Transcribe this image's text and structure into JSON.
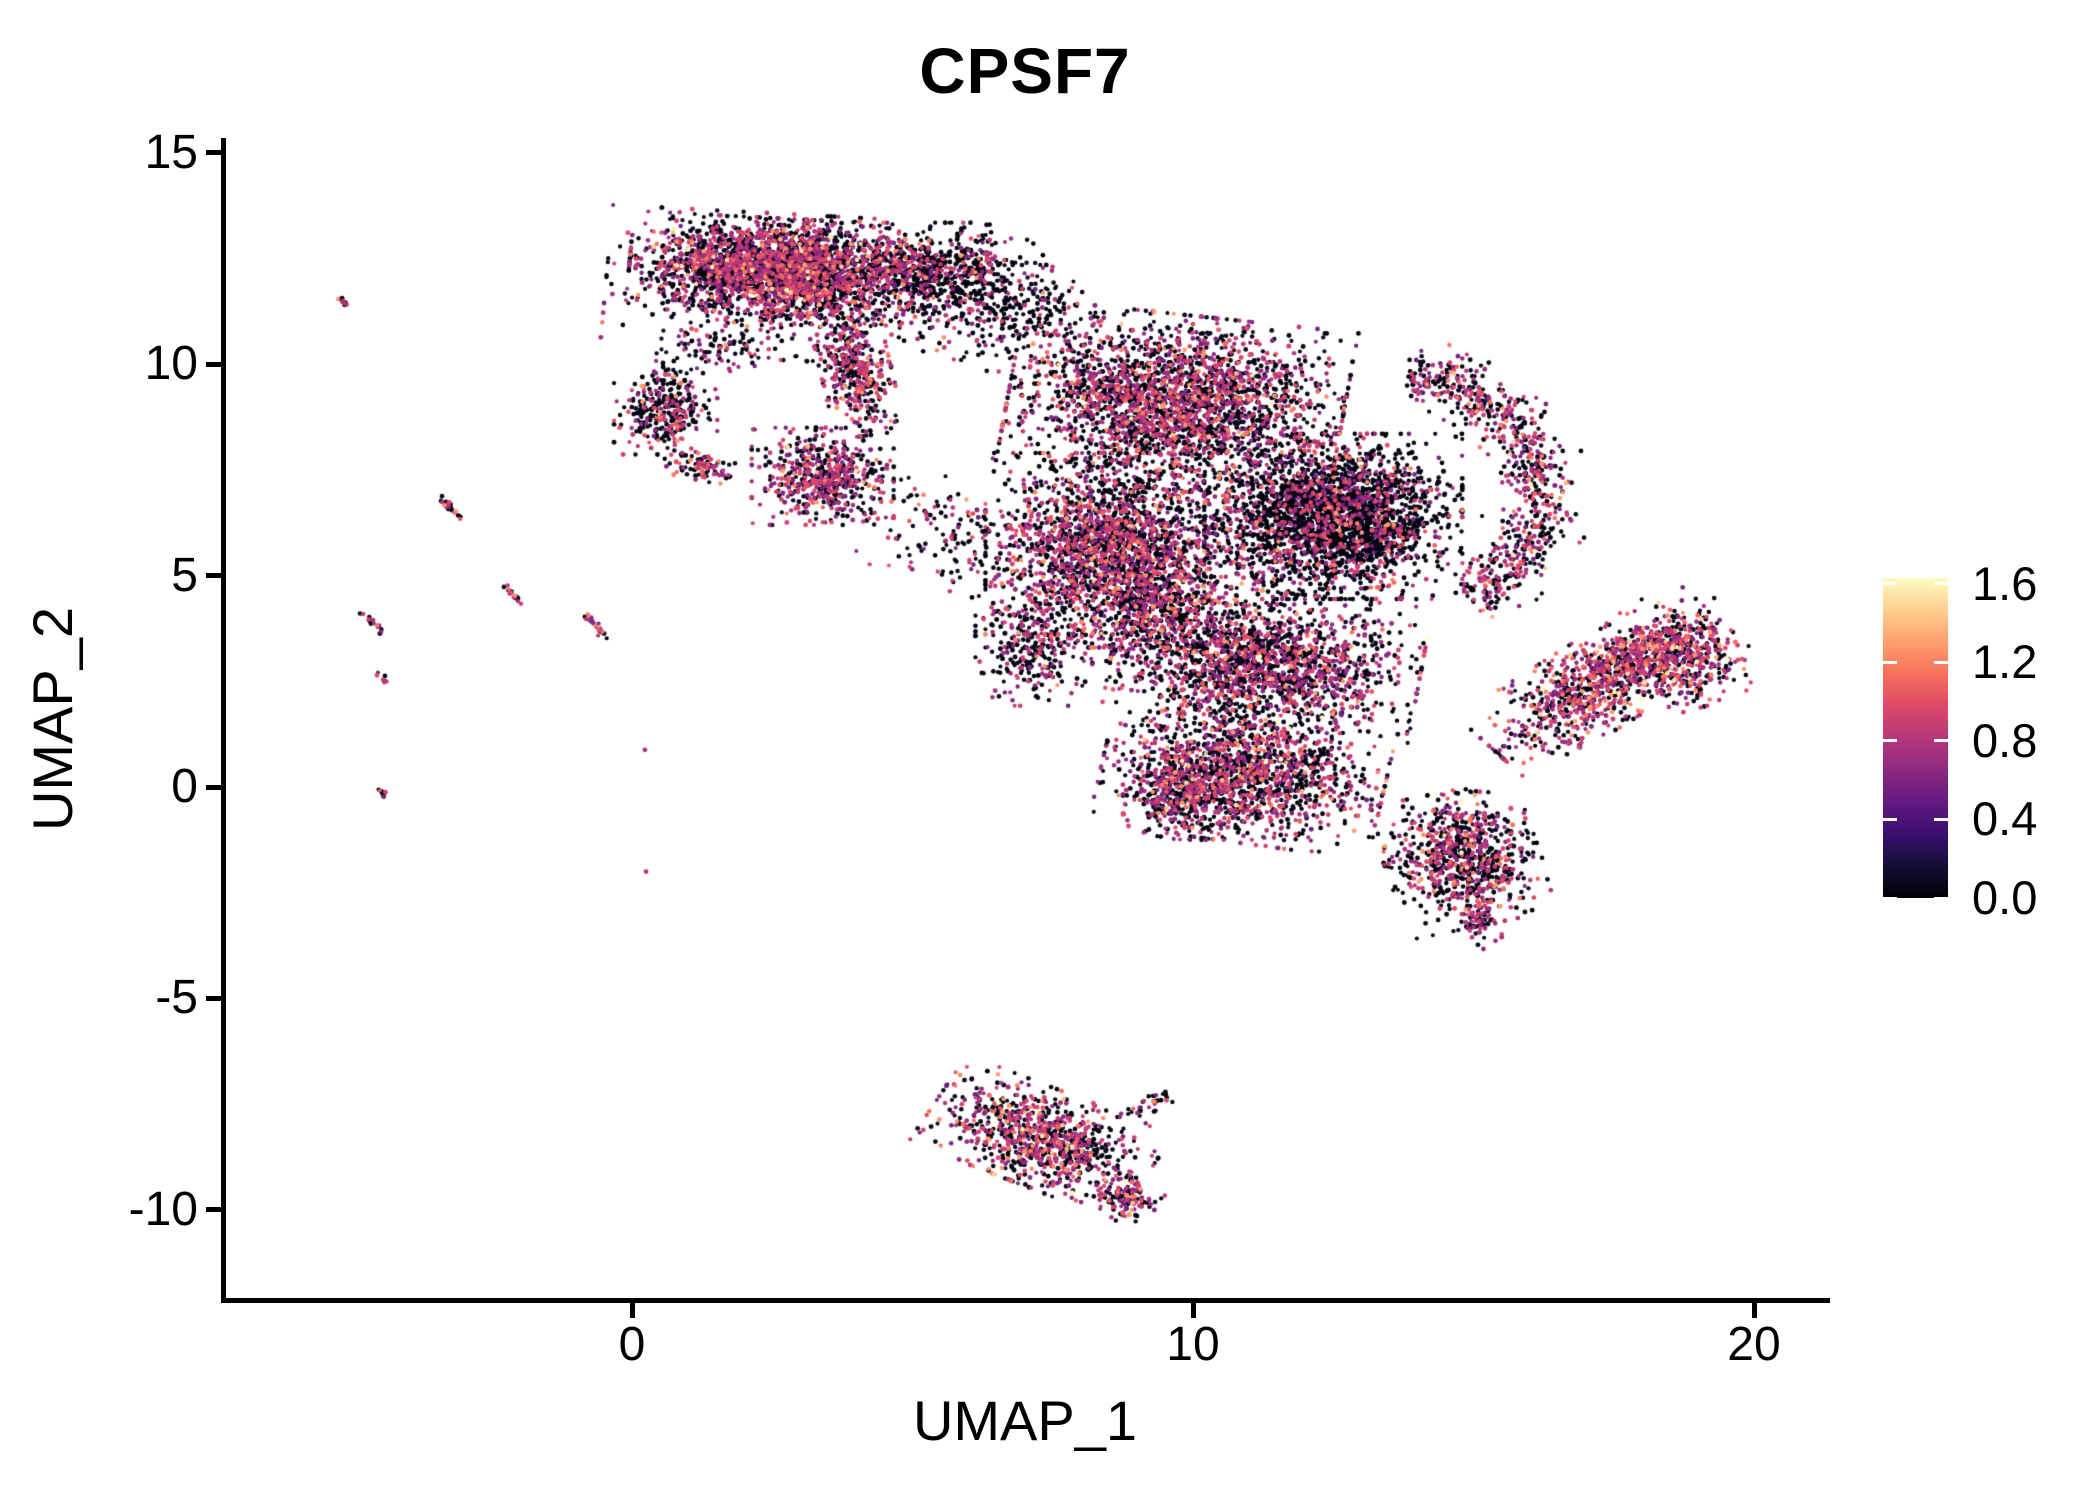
{
  "title": "CPSF7",
  "axes": {
    "x": {
      "label": "UMAP_1",
      "range": [
        -7.2,
        21.3
      ],
      "ticks": [
        {
          "label": "0",
          "value": 0
        },
        {
          "label": "10",
          "value": 10
        },
        {
          "label": "20",
          "value": 20
        }
      ]
    },
    "y": {
      "label": "UMAP_2",
      "range": [
        -12.2,
        15.3
      ],
      "ticks": [
        {
          "label": "15",
          "value": 15
        },
        {
          "label": "10",
          "value": 10
        },
        {
          "label": "5",
          "value": 5
        },
        {
          "label": "0",
          "value": 0
        },
        {
          "label": "-5",
          "value": -5
        },
        {
          "label": "-10",
          "value": -10
        }
      ]
    }
  },
  "legend": {
    "min": 0,
    "max": 1.63,
    "ticks": [
      {
        "label": "1.6",
        "value": 1.6
      },
      {
        "label": "1.2",
        "value": 1.2
      },
      {
        "label": "0.8",
        "value": 0.8
      },
      {
        "label": "0.4",
        "value": 0.4
      },
      {
        "label": "0.0",
        "value": 0.0
      }
    ]
  },
  "colors": {
    "background": "#ffffff",
    "axis": "#000000",
    "text": "#000000",
    "legend_tick_dash": "#ffffff"
  },
  "chart_data": {
    "type": "scatter",
    "title": "CPSF7",
    "xlabel": "UMAP_1",
    "ylabel": "UMAP_2",
    "xlim": [
      -7.2,
      21.3
    ],
    "ylim": [
      -12.2,
      15.3
    ],
    "grid": false,
    "legend_position": "right",
    "color_scale": {
      "name": "magma",
      "domain": [
        0,
        1.63
      ],
      "anchors": [
        [
          0.0,
          "#000004"
        ],
        [
          0.1,
          "#140e36"
        ],
        [
          0.2,
          "#3b0f70"
        ],
        [
          0.3,
          "#641a80"
        ],
        [
          0.4,
          "#8c2981"
        ],
        [
          0.5,
          "#b73779"
        ],
        [
          0.6,
          "#de4968"
        ],
        [
          0.7,
          "#f7705c"
        ],
        [
          0.8,
          "#fe9f6d"
        ],
        [
          0.9,
          "#fecf92"
        ],
        [
          1.0,
          "#fcfdbf"
        ]
      ]
    },
    "expression_bands": {
      "zero": [
        0,
        0.1
      ],
      "mid": [
        0.55,
        1.0
      ],
      "high": [
        1.0,
        1.32
      ],
      "vhigh": [
        1.33,
        1.63
      ]
    },
    "point_radius_px": [
      2.0,
      2.5
    ],
    "seed": 42,
    "clusters": [
      {
        "name": "top-main",
        "type": "gauss",
        "cx": 2.6,
        "cy": 12.3,
        "rx": 2.3,
        "ry": 1.0,
        "rot": -4,
        "n": 2200,
        "expr": [
          0.5,
          0.43,
          0.06,
          0.01
        ]
      },
      {
        "name": "top-spread",
        "type": "gauss",
        "cx": 3.1,
        "cy": 11.8,
        "rx": 3.1,
        "ry": 1.5,
        "rot": -4,
        "n": 800,
        "expr": [
          0.62,
          0.33,
          0.05,
          0.0
        ]
      },
      {
        "name": "top-right-dark",
        "type": "gauss",
        "cx": 5.6,
        "cy": 12.2,
        "rx": 1.5,
        "ry": 1.0,
        "rot": 0,
        "n": 500,
        "expr": [
          0.75,
          0.22,
          0.03,
          0.0
        ]
      },
      {
        "name": "top-tail",
        "type": "gauss",
        "cx": 4.0,
        "cy": 9.8,
        "rx": 0.55,
        "ry": 1.3,
        "rot": 10,
        "n": 380,
        "expr": [
          0.5,
          0.44,
          0.06,
          0.0
        ]
      },
      {
        "name": "top-bridge",
        "type": "gauss",
        "cx": 6.8,
        "cy": 11.2,
        "rx": 1.4,
        "ry": 1.0,
        "rot": 0,
        "n": 220,
        "expr": [
          0.7,
          0.27,
          0.03,
          0.0
        ]
      },
      {
        "name": "left-bridge",
        "type": "gauss",
        "cx": 1.4,
        "cy": 10.3,
        "rx": 0.9,
        "ry": 0.65,
        "rot": 0,
        "n": 80,
        "expr": [
          0.6,
          0.36,
          0.04,
          0.0
        ]
      },
      {
        "name": "c-cluster",
        "type": "gauss",
        "cx": 0.6,
        "cy": 8.9,
        "rx": 0.8,
        "ry": 0.9,
        "rot": 0,
        "n": 310,
        "expr": [
          0.66,
          0.29,
          0.05,
          0.0
        ]
      },
      {
        "name": "c-cluster-hook",
        "type": "gauss",
        "cx": 1.25,
        "cy": 7.6,
        "rx": 0.6,
        "ry": 0.3,
        "rot": -15,
        "n": 90,
        "expr": [
          0.5,
          0.4,
          0.1,
          0.0
        ]
      },
      {
        "name": "round-cluster",
        "type": "gauss",
        "cx": 3.4,
        "cy": 7.35,
        "rx": 1.1,
        "ry": 1.0,
        "rot": 0,
        "n": 560,
        "expr": [
          0.44,
          0.49,
          0.06,
          0.01
        ]
      },
      {
        "name": "trail-mid",
        "type": "gauss",
        "cx": 5.6,
        "cy": 6.0,
        "rx": 1.4,
        "ry": 1.1,
        "rot": -20,
        "n": 140,
        "expr": [
          0.6,
          0.35,
          0.05,
          0.0
        ]
      },
      {
        "name": "central-upper",
        "type": "gauss",
        "cx": 9.7,
        "cy": 9.1,
        "rx": 2.6,
        "ry": 1.8,
        "rot": -8,
        "n": 2500,
        "expr": [
          0.56,
          0.38,
          0.055,
          0.005
        ]
      },
      {
        "name": "central-core",
        "type": "gauss",
        "cx": 12.5,
        "cy": 6.4,
        "rx": 2.0,
        "ry": 1.7,
        "rot": 0,
        "n": 2600,
        "expr": [
          0.76,
          0.21,
          0.03,
          0.0
        ]
      },
      {
        "name": "central-left",
        "type": "gauss",
        "cx": 8.6,
        "cy": 5.6,
        "rx": 2.0,
        "ry": 2.0,
        "rot": 0,
        "n": 2100,
        "expr": [
          0.54,
          0.4,
          0.055,
          0.005
        ]
      },
      {
        "name": "central-crescent",
        "type": "arc",
        "cx": 13.6,
        "cy": 6.9,
        "arx": 2.6,
        "ary": 2.8,
        "width": 0.3,
        "a0": -60,
        "a1": 85,
        "n": 750,
        "expr": [
          0.5,
          0.43,
          0.06,
          0.01
        ]
      },
      {
        "name": "central-lower",
        "type": "gauss",
        "cx": 11.3,
        "cy": 2.9,
        "rx": 2.4,
        "ry": 1.5,
        "rot": -8,
        "n": 1700,
        "expr": [
          0.58,
          0.36,
          0.055,
          0.005
        ]
      },
      {
        "name": "central-neck",
        "type": "gauss",
        "cx": 9.4,
        "cy": 4.3,
        "rx": 1.2,
        "ry": 1.5,
        "rot": 0,
        "n": 450,
        "expr": [
          0.62,
          0.33,
          0.05,
          0.0
        ]
      },
      {
        "name": "central-left-spur",
        "type": "gauss",
        "cx": 7.1,
        "cy": 3.3,
        "rx": 0.85,
        "ry": 1.2,
        "rot": 0,
        "n": 280,
        "expr": [
          0.58,
          0.37,
          0.05,
          0.0
        ]
      },
      {
        "name": "wing",
        "type": "gauss",
        "cx": 17.3,
        "cy": 2.5,
        "rx": 2.2,
        "ry": 0.9,
        "rot": 40,
        "n": 950,
        "expr": [
          0.42,
          0.45,
          0.11,
          0.02
        ]
      },
      {
        "name": "wing-end",
        "type": "gauss",
        "cx": 18.7,
        "cy": 3.1,
        "rx": 0.9,
        "ry": 1.1,
        "rot": 20,
        "n": 380,
        "expr": [
          0.4,
          0.47,
          0.11,
          0.02
        ]
      },
      {
        "name": "midlow",
        "type": "gauss",
        "cx": 10.9,
        "cy": 0.3,
        "rx": 2.2,
        "ry": 1.4,
        "rot": -10,
        "n": 1350,
        "expr": [
          0.55,
          0.38,
          0.06,
          0.01
        ]
      },
      {
        "name": "midlow-dense",
        "type": "gauss",
        "cx": 9.9,
        "cy": -0.1,
        "rx": 1.0,
        "ry": 1.0,
        "rot": 0,
        "n": 420,
        "expr": [
          0.48,
          0.44,
          0.07,
          0.01
        ]
      },
      {
        "name": "right-small",
        "type": "gauss",
        "cx": 14.8,
        "cy": -1.7,
        "rx": 1.2,
        "ry": 1.4,
        "rot": 15,
        "n": 780,
        "expr": [
          0.55,
          0.38,
          0.06,
          0.01
        ]
      },
      {
        "name": "right-small-tip",
        "type": "gauss",
        "cx": 15.1,
        "cy": -3.2,
        "rx": 0.35,
        "ry": 0.55,
        "rot": 0,
        "n": 70,
        "expr": [
          0.5,
          0.42,
          0.08,
          0.0
        ]
      },
      {
        "name": "bottom",
        "type": "gauss",
        "cx": 7.3,
        "cy": -8.3,
        "rx": 1.8,
        "ry": 1.0,
        "rot": -27,
        "n": 850,
        "expr": [
          0.48,
          0.42,
          0.09,
          0.01
        ]
      },
      {
        "name": "bottom-tip",
        "type": "gauss",
        "cx": 8.8,
        "cy": -9.7,
        "rx": 0.6,
        "ry": 0.45,
        "rot": -45,
        "n": 130,
        "expr": [
          0.45,
          0.44,
          0.1,
          0.01
        ]
      },
      {
        "name": "bottom-antenna",
        "type": "gauss",
        "cx": 9.2,
        "cy": -7.5,
        "rx": 0.55,
        "ry": 0.18,
        "rot": 35,
        "n": 35,
        "expr": [
          0.6,
          0.35,
          0.05,
          0.0
        ]
      },
      {
        "name": "streak-1",
        "type": "streak",
        "cx": -5.15,
        "cy": 11.5,
        "len": 0.45,
        "ang": -53,
        "n": 10,
        "expr": [
          0.45,
          0.4,
          0.15,
          0.0
        ]
      },
      {
        "name": "streak-2",
        "type": "streak",
        "cx": -3.27,
        "cy": 6.62,
        "len": 0.65,
        "ang": -53,
        "n": 22,
        "expr": [
          0.45,
          0.35,
          0.2,
          0.0
        ]
      },
      {
        "name": "streak-3",
        "type": "streak",
        "cx": -2.12,
        "cy": 4.55,
        "len": 0.5,
        "ang": -53,
        "n": 16,
        "expr": [
          0.45,
          0.35,
          0.2,
          0.0
        ]
      },
      {
        "name": "streak-4",
        "type": "streak",
        "cx": -4.62,
        "cy": 3.9,
        "len": 0.55,
        "ang": -53,
        "n": 16,
        "expr": [
          0.45,
          0.4,
          0.15,
          0.0
        ]
      },
      {
        "name": "streak-5",
        "type": "streak",
        "cx": -4.45,
        "cy": 2.55,
        "len": 0.3,
        "ang": -53,
        "n": 8,
        "expr": [
          0.5,
          0.4,
          0.1,
          0.0
        ]
      },
      {
        "name": "streak-6",
        "type": "streak",
        "cx": -0.63,
        "cy": 3.78,
        "len": 0.68,
        "ang": -53,
        "n": 24,
        "expr": [
          0.45,
          0.35,
          0.2,
          0.0
        ]
      },
      {
        "name": "streak-7",
        "type": "streak",
        "cx": -4.45,
        "cy": -0.15,
        "len": 0.28,
        "ang": -53,
        "n": 8,
        "expr": [
          0.5,
          0.4,
          0.1,
          0.0
        ]
      }
    ],
    "lone_points": [
      [
        0.25,
        -2.0,
        0.8
      ],
      [
        0.23,
        0.88,
        0.75
      ]
    ]
  }
}
